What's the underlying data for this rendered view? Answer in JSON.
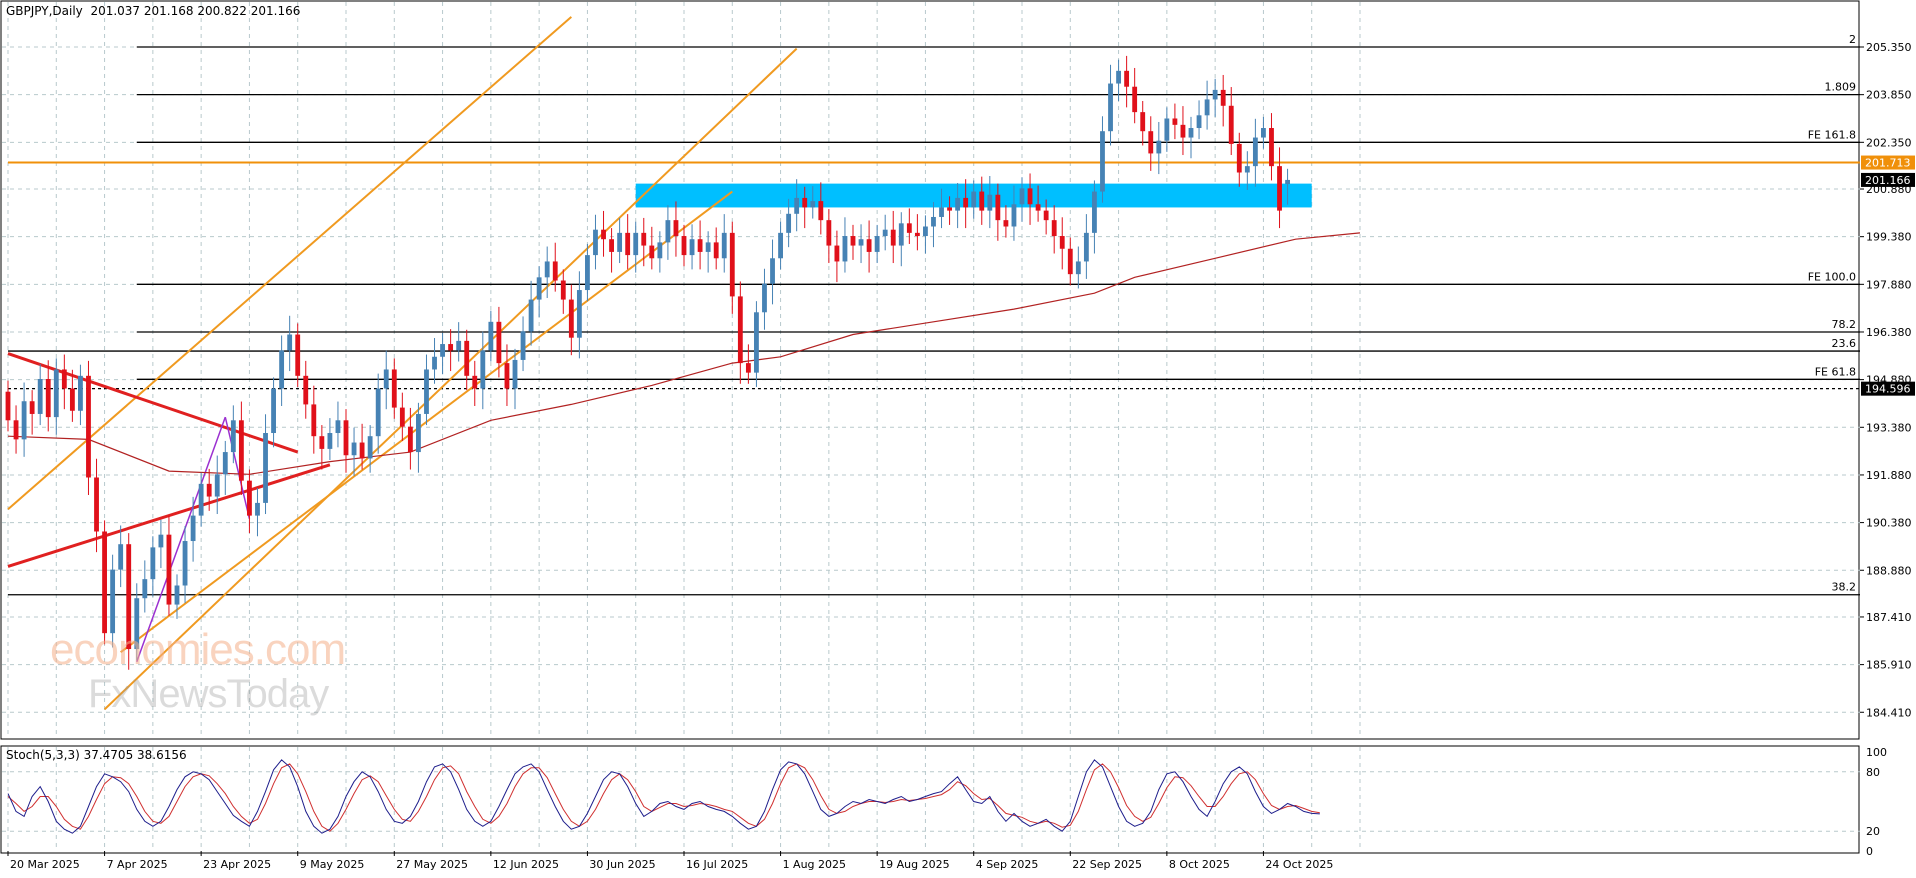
{
  "header": {
    "symbol": "GBPJPY,Daily",
    "ohlc": "201.037 201.168 200.822 201.166"
  },
  "stoch_header": "Stoch(5,3,3) 37.4705 38.6156",
  "watermark": {
    "line1": "economies.com",
    "line2": "FxNewsToday"
  },
  "colors": {
    "bull": "#4682b4",
    "bear": "#e0101a",
    "grid": "#b8c9cc",
    "ma": "#b22222",
    "orange": "#f0900a",
    "channel": "#f09a20",
    "triangle": "#e02020",
    "pattern": "#9b30d0",
    "zone": "#00bfff",
    "stoch_main": "#1e1e8c",
    "stoch_signal": "#d03030"
  },
  "chart_data": {
    "type": "candlestick",
    "ylim": [
      183.6,
      206.2
    ],
    "y_ticks": [
      "205.350",
      "203.850",
      "202.350",
      "200.880",
      "199.380",
      "197.880",
      "196.380",
      "194.880",
      "193.380",
      "191.880",
      "190.380",
      "188.880",
      "187.410",
      "185.910",
      "184.410"
    ],
    "x_tick_labels": [
      {
        "label": "20 Mar 2025",
        "index": 0
      },
      {
        "label": "7 Apr 2025",
        "index": 12
      },
      {
        "label": "23 Apr 2025",
        "index": 24
      },
      {
        "label": "9 May 2025",
        "index": 36
      },
      {
        "label": "27 May 2025",
        "index": 48
      },
      {
        "label": "12 Jun 2025",
        "index": 60
      },
      {
        "label": "30 Jun 2025",
        "index": 72
      },
      {
        "label": "16 Jul 2025",
        "index": 84
      },
      {
        "label": "1 Aug 2025",
        "index": 96
      },
      {
        "label": "19 Aug 2025",
        "index": 108
      },
      {
        "label": "4 Sep 2025",
        "index": 120
      },
      {
        "label": "22 Sep 2025",
        "index": 132
      },
      {
        "label": "8 Oct 2025",
        "index": 144
      },
      {
        "label": "24 Oct 2025",
        "index": 156
      }
    ],
    "x_slots": 171,
    "closes": [
      193.6,
      193.0,
      194.2,
      193.8,
      194.9,
      193.7,
      195.2,
      194.6,
      193.9,
      195.0,
      191.8,
      190.1,
      186.9,
      188.9,
      189.7,
      186.4,
      188.0,
      188.6,
      189.6,
      190.0,
      187.8,
      188.4,
      189.8,
      190.6,
      191.6,
      191.2,
      191.9,
      192.6,
      193.6,
      191.7,
      190.6,
      191.0,
      193.2,
      194.6,
      195.8,
      196.3,
      195.0,
      194.1,
      193.1,
      192.7,
      193.2,
      193.6,
      192.5,
      192.9,
      192.4,
      193.1,
      194.6,
      195.2,
      194.0,
      193.4,
      192.6,
      193.8,
      195.2,
      195.6,
      196.0,
      195.8,
      196.1,
      195.0,
      194.6,
      195.8,
      196.7,
      195.4,
      194.6,
      195.5,
      196.4,
      197.4,
      198.1,
      198.6,
      198.0,
      197.4,
      196.2,
      197.7,
      198.8,
      199.6,
      199.3,
      198.9,
      199.5,
      198.8,
      199.5,
      199.1,
      198.7,
      199.2,
      199.9,
      199.4,
      198.8,
      199.3,
      198.9,
      199.2,
      198.7,
      199.5,
      197.5,
      195.4,
      195.1,
      197.0,
      197.9,
      198.7,
      199.5,
      200.1,
      200.6,
      200.3,
      200.5,
      199.9,
      199.1,
      198.6,
      199.4,
      199.1,
      199.3,
      198.9,
      199.4,
      199.6,
      199.1,
      199.8,
      199.5,
      199.4,
      199.7,
      200.0,
      200.3,
      200.2,
      200.6,
      200.3,
      200.8,
      200.2,
      200.7,
      199.9,
      199.7,
      200.4,
      200.9,
      200.4,
      200.2,
      199.9,
      199.4,
      199.0,
      198.2,
      198.6,
      199.5,
      200.8,
      202.7,
      204.2,
      204.6,
      204.1,
      203.3,
      202.7,
      202.0,
      202.4,
      203.1,
      202.9,
      202.5,
      202.8,
      203.2,
      203.7,
      204.0,
      203.5,
      202.3,
      201.4,
      201.6,
      202.5,
      202.8,
      201.6,
      200.2,
      201.166
    ],
    "opens": [
      194.5,
      193.6,
      193.0,
      194.2,
      193.8,
      194.9,
      193.7,
      195.2,
      194.6,
      193.9,
      195.0,
      191.8,
      190.1,
      186.9,
      188.9,
      189.7,
      186.4,
      188.0,
      188.6,
      189.6,
      190.0,
      187.8,
      188.4,
      189.8,
      190.6,
      191.6,
      191.2,
      191.9,
      192.6,
      193.6,
      191.7,
      190.6,
      191.0,
      193.2,
      194.6,
      195.8,
      196.3,
      195.0,
      194.1,
      193.1,
      192.7,
      193.2,
      193.6,
      192.5,
      192.9,
      192.4,
      193.1,
      194.6,
      195.2,
      194.0,
      193.4,
      192.6,
      193.8,
      195.2,
      195.6,
      196.0,
      195.8,
      196.1,
      195.0,
      194.6,
      195.8,
      196.7,
      195.4,
      194.6,
      195.5,
      196.4,
      197.4,
      198.1,
      198.6,
      198.0,
      197.4,
      196.2,
      197.7,
      198.8,
      199.6,
      199.3,
      198.9,
      199.5,
      198.8,
      199.5,
      199.1,
      198.7,
      199.2,
      199.9,
      199.4,
      198.8,
      199.3,
      198.9,
      199.2,
      198.7,
      199.5,
      197.5,
      195.4,
      195.1,
      197.0,
      197.9,
      198.7,
      199.5,
      200.1,
      200.6,
      200.3,
      200.5,
      199.9,
      199.1,
      198.6,
      199.4,
      199.1,
      199.3,
      198.9,
      199.4,
      199.6,
      199.1,
      199.8,
      199.5,
      199.4,
      199.7,
      200.0,
      200.3,
      200.2,
      200.6,
      200.3,
      200.8,
      200.2,
      200.7,
      199.9,
      199.7,
      200.4,
      200.9,
      200.4,
      200.2,
      199.9,
      199.4,
      199.0,
      198.2,
      198.6,
      199.5,
      200.8,
      202.7,
      204.2,
      204.6,
      204.1,
      203.3,
      202.7,
      202.0,
      202.4,
      203.1,
      202.9,
      202.5,
      202.8,
      203.2,
      203.7,
      204.0,
      203.5,
      202.3,
      201.4,
      201.6,
      202.5,
      202.8,
      201.6,
      201.037
    ],
    "moving_average": {
      "name": "",
      "points": [
        [
          0,
          193.1
        ],
        [
          10,
          193.0
        ],
        [
          20,
          192.0
        ],
        [
          30,
          191.9
        ],
        [
          40,
          192.3
        ],
        [
          50,
          192.6
        ],
        [
          60,
          193.6
        ],
        [
          70,
          194.1
        ],
        [
          80,
          194.7
        ],
        [
          90,
          195.4
        ],
        [
          96,
          195.6
        ],
        [
          105,
          196.3
        ],
        [
          115,
          196.7
        ],
        [
          125,
          197.1
        ],
        [
          135,
          197.6
        ],
        [
          140,
          198.1
        ],
        [
          150,
          198.7
        ],
        [
          160,
          199.3
        ],
        [
          168,
          199.5
        ]
      ]
    },
    "horizontal_levels": [
      {
        "label": "2",
        "value": 205.35,
        "style": "solid",
        "color": "#000000",
        "from_index": 16
      },
      {
        "label": "1.809",
        "value": 203.85,
        "style": "solid",
        "color": "#000000",
        "from_index": 16
      },
      {
        "label": "FE 161.8",
        "value": 202.35,
        "style": "solid",
        "color": "#000000",
        "from_index": 16
      },
      {
        "label": "FE 100.0",
        "value": 197.88,
        "style": "solid",
        "color": "#000000",
        "from_index": 16
      },
      {
        "label": "78.2",
        "value": 196.38,
        "style": "solid",
        "color": "#000000",
        "from_index": 16
      },
      {
        "label": "23.6",
        "value": 195.78,
        "style": "solid",
        "color": "#000000",
        "from_index": 0
      },
      {
        "label": "FE 61.8",
        "value": 194.89,
        "style": "solid",
        "color": "#000000",
        "from_index": 16
      },
      {
        "label": "38.2",
        "value": 188.11,
        "style": "solid",
        "color": "#000000",
        "from_index": 0
      },
      {
        "label": "",
        "value": 194.596,
        "style": "dashed",
        "color": "#000000",
        "from_index": 0
      },
      {
        "label": "",
        "value": 201.713,
        "style": "solid",
        "color": "#f0900a",
        "from_index": 0
      }
    ],
    "price_badges": [
      {
        "text": "201.713",
        "value": 201.713,
        "bg": "#f0900a",
        "fg": "#ffffff"
      },
      {
        "text": "201.166",
        "value": 201.166,
        "bg": "#000000",
        "fg": "#ffffff"
      },
      {
        "text": "194.596",
        "value": 194.596,
        "bg": "#000000",
        "fg": "#ffffff"
      }
    ],
    "supply_zone": {
      "from_index": 78,
      "to_index": 162,
      "y_top": 201.05,
      "y_bottom": 200.3
    },
    "channel_lines": [
      {
        "p1": [
          0,
          190.8
        ],
        "p2": [
          70,
          206.3
        ]
      },
      {
        "p1": [
          12,
          184.5
        ],
        "p2": [
          98,
          205.3
        ]
      },
      {
        "p1": [
          14,
          186.3
        ],
        "p2": [
          90,
          200.8
        ]
      }
    ],
    "triangle_lines": [
      {
        "p1": [
          0,
          195.7
        ],
        "p2": [
          36,
          192.6
        ]
      },
      {
        "p1": [
          0,
          189.0
        ],
        "p2": [
          40,
          192.2
        ]
      }
    ],
    "pattern_lines": [
      {
        "p1": [
          16,
          186.0
        ],
        "p2": [
          27,
          193.7
        ]
      },
      {
        "p1": [
          27,
          193.7
        ],
        "p2": [
          30,
          190.5
        ]
      }
    ],
    "stochastic": {
      "ylim": [
        0,
        100
      ],
      "levels": [
        100,
        80,
        20,
        0
      ],
      "main": [
        58,
        40,
        35,
        55,
        65,
        50,
        30,
        22,
        18,
        25,
        45,
        65,
        78,
        75,
        70,
        60,
        42,
        30,
        25,
        30,
        45,
        62,
        75,
        80,
        78,
        72,
        60,
        48,
        36,
        30,
        25,
        40,
        60,
        82,
        92,
        85,
        65,
        40,
        25,
        18,
        22,
        35,
        55,
        70,
        80,
        75,
        60,
        42,
        30,
        28,
        35,
        50,
        70,
        85,
        88,
        80,
        62,
        42,
        30,
        25,
        30,
        45,
        62,
        78,
        85,
        88,
        80,
        62,
        45,
        30,
        22,
        25,
        38,
        55,
        72,
        80,
        78,
        65,
        48,
        35,
        40,
        48,
        50,
        45,
        42,
        48,
        50,
        45,
        42,
        40,
        35,
        28,
        22,
        25,
        40,
        62,
        82,
        90,
        88,
        78,
        60,
        42,
        35,
        38,
        45,
        50,
        48,
        52,
        50,
        48,
        52,
        55,
        50,
        52,
        55,
        58,
        60,
        68,
        75,
        62,
        50,
        48,
        55,
        40,
        30,
        38,
        30,
        25,
        28,
        32,
        25,
        20,
        30,
        55,
        80,
        92,
        85,
        65,
        45,
        30,
        25,
        28,
        40,
        62,
        78,
        80,
        70,
        55,
        42,
        35,
        50,
        68,
        80,
        85,
        78,
        60,
        45,
        38,
        42,
        48,
        45,
        40,
        38,
        37.5
      ],
      "signal": [
        55,
        48,
        40,
        45,
        55,
        55,
        45,
        32,
        25,
        22,
        35,
        52,
        68,
        75,
        74,
        68,
        55,
        40,
        30,
        28,
        35,
        50,
        65,
        75,
        78,
        76,
        68,
        58,
        45,
        35,
        28,
        32,
        48,
        68,
        84,
        88,
        78,
        60,
        40,
        25,
        20,
        28,
        42,
        58,
        72,
        76,
        70,
        56,
        42,
        32,
        30,
        40,
        55,
        72,
        84,
        86,
        78,
        60,
        45,
        32,
        28,
        35,
        48,
        65,
        78,
        84,
        84,
        74,
        58,
        42,
        30,
        25,
        30,
        42,
        58,
        72,
        78,
        72,
        60,
        45,
        40,
        44,
        48,
        48,
        45,
        46,
        48,
        47,
        45,
        42,
        40,
        34,
        28,
        25,
        32,
        48,
        68,
        84,
        88,
        84,
        72,
        56,
        42,
        38,
        40,
        45,
        48,
        50,
        50,
        49,
        50,
        52,
        51,
        52,
        53,
        55,
        57,
        62,
        70,
        66,
        58,
        52,
        53,
        46,
        38,
        36,
        34,
        30,
        28,
        30,
        28,
        24,
        26,
        40,
        62,
        82,
        88,
        80,
        64,
        46,
        35,
        30,
        34,
        48,
        64,
        75,
        74,
        66,
        55,
        45,
        45,
        55,
        68,
        78,
        80,
        72,
        58,
        46,
        42,
        45,
        46,
        43,
        40,
        38.6
      ]
    }
  }
}
